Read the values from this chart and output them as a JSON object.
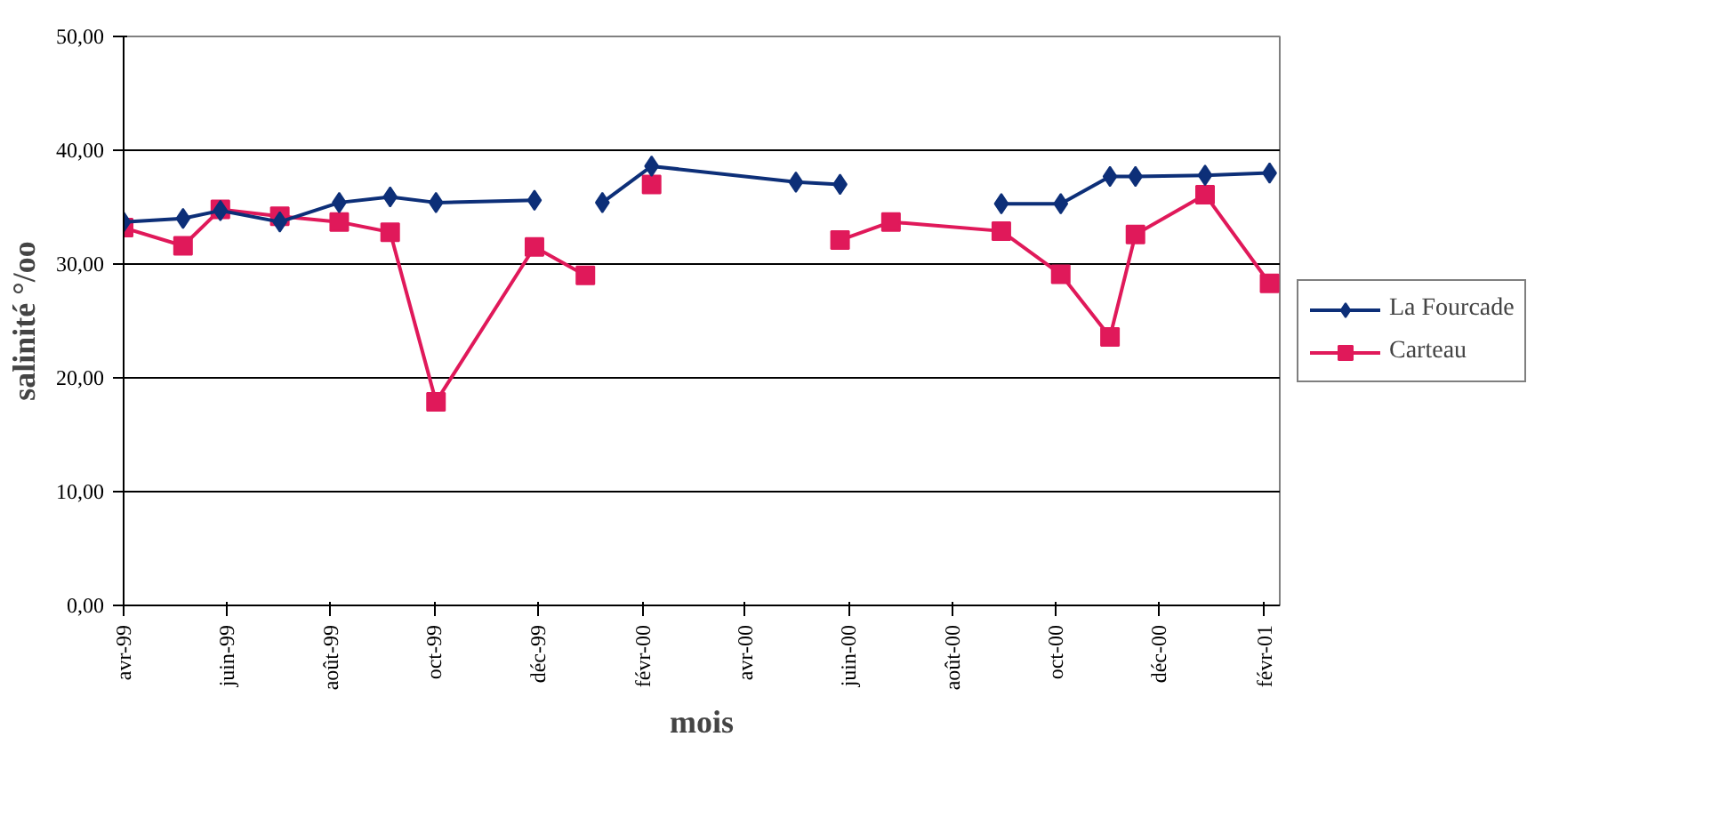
{
  "chart_data": {
    "type": "line",
    "xlabel": "mois",
    "ylabel": "salinité °/oo",
    "x": [
      "1999-04-01",
      "1999-05-06",
      "1999-05-28",
      "1999-07-02",
      "1999-08-06",
      "1999-09-05",
      "1999-10-02",
      "1999-11-29",
      "1999-12-29",
      "2000-01-08",
      "2000-02-06",
      "2000-05-01",
      "2000-05-27",
      "2000-06-26",
      "2000-08-30",
      "2000-10-04",
      "2000-11-02",
      "2000-11-17",
      "2000-12-28",
      "2001-02-04"
    ],
    "series": [
      {
        "name": "La Fourcade",
        "color": "#0d2f78",
        "marker": "diamond",
        "values": [
          33.7,
          34.0,
          34.7,
          33.7,
          35.4,
          35.9,
          35.4,
          35.6,
          null,
          35.4,
          38.6,
          37.2,
          37.0,
          null,
          35.3,
          35.3,
          37.7,
          37.7,
          37.8,
          38.0
        ]
      },
      {
        "name": "Carteau",
        "color": "#e0195a",
        "marker": "square",
        "values": [
          33.2,
          31.6,
          34.8,
          34.2,
          33.7,
          32.8,
          17.9,
          31.5,
          29.0,
          null,
          37.0,
          null,
          32.1,
          33.7,
          32.9,
          29.1,
          23.6,
          32.6,
          36.1,
          28.3
        ]
      }
    ],
    "xlim": [
      "1999-04-01",
      "2001-02-10"
    ],
    "xticks": [
      {
        "value": "1999-04-01",
        "label": "avr-99"
      },
      {
        "value": "1999-06-01",
        "label": "juin-99"
      },
      {
        "value": "1999-08-01",
        "label": "août-99"
      },
      {
        "value": "1999-10-01",
        "label": "oct-99"
      },
      {
        "value": "1999-12-01",
        "label": "déc-99"
      },
      {
        "value": "2000-02-01",
        "label": "févr-00"
      },
      {
        "value": "2000-04-01",
        "label": "avr-00"
      },
      {
        "value": "2000-06-01",
        "label": "juin-00"
      },
      {
        "value": "2000-08-01",
        "label": "août-00"
      },
      {
        "value": "2000-10-01",
        "label": "oct-00"
      },
      {
        "value": "2000-12-01",
        "label": "déc-00"
      },
      {
        "value": "2001-02-01",
        "label": "févr-01"
      }
    ],
    "ylim": [
      0,
      50
    ],
    "yticks": [
      {
        "value": 0,
        "label": "0,00"
      },
      {
        "value": 10,
        "label": "10,00"
      },
      {
        "value": 20,
        "label": "20,00"
      },
      {
        "value": 30,
        "label": "30,00"
      },
      {
        "value": 40,
        "label": "40,00"
      },
      {
        "value": 50,
        "label": "50,00"
      }
    ],
    "grid": "y",
    "legend": "right",
    "line_style": "solid"
  }
}
